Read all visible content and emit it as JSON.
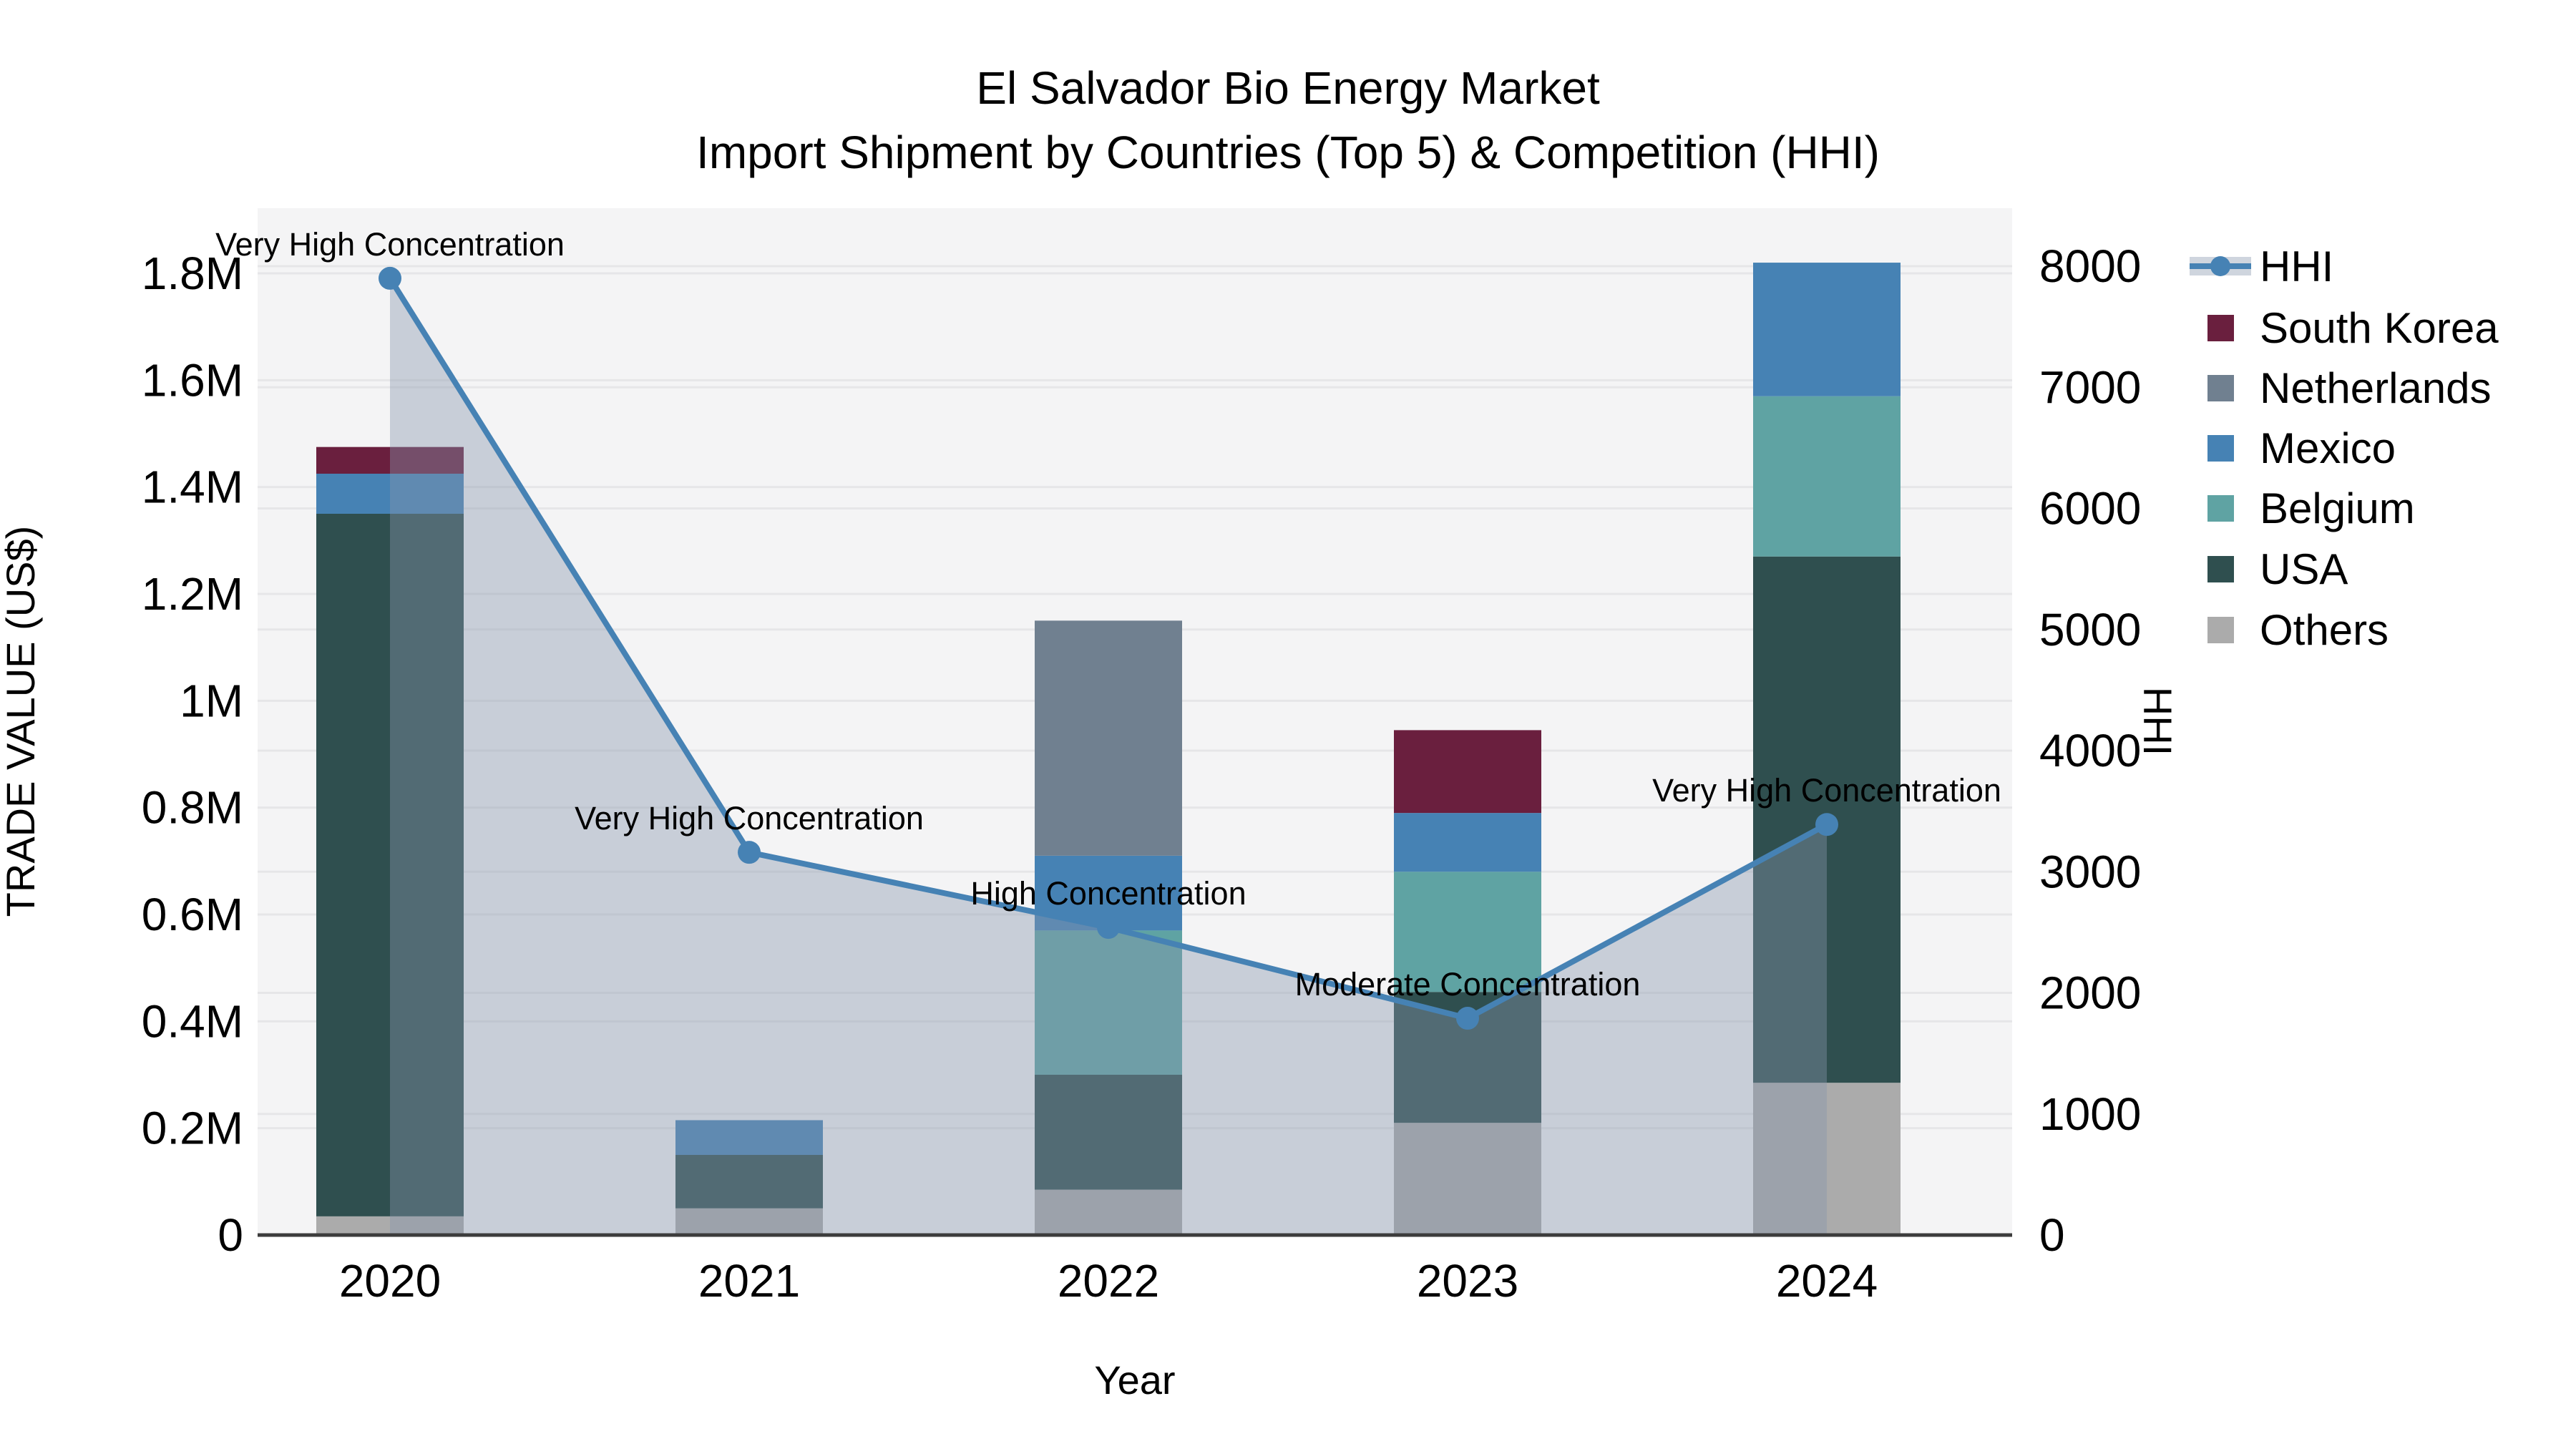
{
  "chart_data": {
    "type": "bar",
    "subtype": "stacked-bars-with-hhi-line-and-area",
    "title": "El Salvador Bio Energy Market",
    "subtitle": "Import Shipment by Countries (Top 5) & Competition (HHI)",
    "categories": [
      "2020",
      "2021",
      "2022",
      "2023",
      "2024"
    ],
    "xlabel": "Year",
    "y_left": {
      "label": "TRADE VALUE (US$)",
      "min": 0,
      "max": 1800000,
      "tick_step": 200000,
      "tick_labels": [
        "0",
        "0.2M",
        "0.4M",
        "0.6M",
        "0.8M",
        "1M",
        "1.2M",
        "1.4M",
        "1.6M",
        "1.8M"
      ]
    },
    "y_right": {
      "label": "HHI",
      "min": 0,
      "max": 8000,
      "tick_step": 1000,
      "tick_labels": [
        "0",
        "1000",
        "2000",
        "3000",
        "4000",
        "5000",
        "6000",
        "7000",
        "8000"
      ]
    },
    "bar_series": [
      {
        "name": "Others",
        "color": "#ABABAB",
        "values": [
          35000,
          50000,
          85000,
          210000,
          285000
        ]
      },
      {
        "name": "USA",
        "color": "#2F4F4F",
        "values": [
          1315000,
          100000,
          215000,
          245000,
          985000
        ]
      },
      {
        "name": "Belgium",
        "color": "#5FA3A3",
        "values": [
          0,
          0,
          270000,
          225000,
          300000
        ]
      },
      {
        "name": "Mexico",
        "color": "#4682B4",
        "values": [
          75000,
          65000,
          140000,
          110000,
          250000
        ]
      },
      {
        "name": "Netherlands",
        "color": "#708090",
        "values": [
          0,
          0,
          440000,
          0,
          0
        ]
      },
      {
        "name": "South Korea",
        "color": "#6A1F3E",
        "values": [
          50000,
          0,
          0,
          155000,
          0
        ]
      }
    ],
    "line_series": {
      "name": "HHI",
      "color": "#4682B4",
      "area_color": "rgba(136,150,173,0.40)",
      "values": [
        7900,
        3160,
        2540,
        1790,
        3390
      ]
    },
    "annotations": [
      "Very High Concentration",
      "Very High Concentration",
      "High Concentration",
      "Moderate Concentration",
      "Very High Concentration"
    ],
    "legend": {
      "position": "right",
      "items": [
        "HHI",
        "South Korea",
        "Netherlands",
        "Mexico",
        "Belgium",
        "USA",
        "Others"
      ]
    },
    "grid": true,
    "plot_background": "#F4F4F5",
    "grid_color": "#E6E6E8",
    "axis_line_color": "#3C3C3C"
  }
}
